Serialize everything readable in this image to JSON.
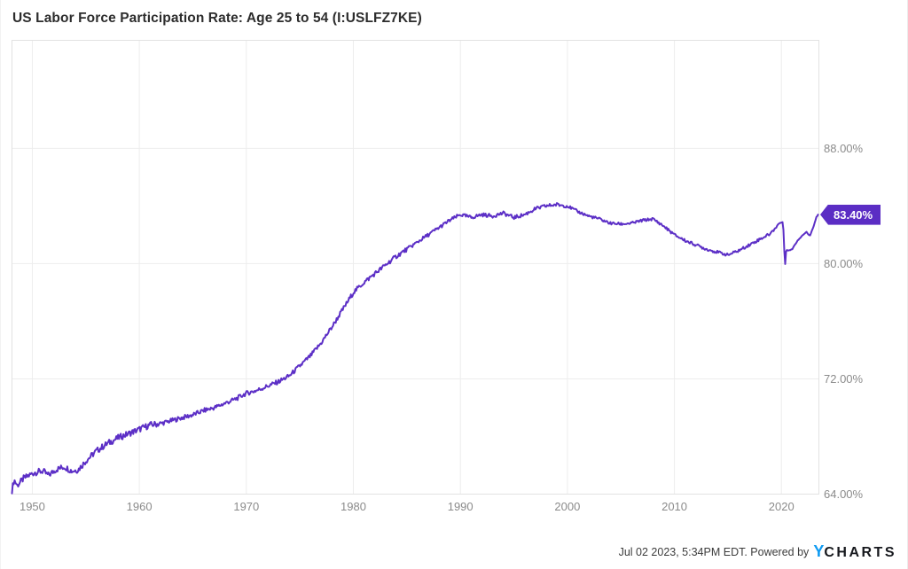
{
  "title": "US Labor Force Participation Rate: Age 25 to 54 (I:USLFZ7KE)",
  "footer": {
    "timestamp": "Jul 02 2023, 5:34PM EDT. Powered by",
    "logo_y": "Y",
    "logo_charts": "CHARTS"
  },
  "colors": {
    "line": "#5c2fc6",
    "badge_bg": "#5b2dc4",
    "grid": "#ededed",
    "plot_border": "#e2e2e2",
    "axis_text": "#8b8b8b",
    "title_text": "#2d2d2d",
    "footer_text": "#3c3c3c",
    "brand_blue": "#0f9bf2",
    "brand_dark": "#16181d"
  },
  "chart_data": {
    "type": "line",
    "title": "US Labor Force Participation Rate: Age 25 to 54 (I:USLFZ7KE)",
    "xlabel": "",
    "ylabel": "",
    "grid": true,
    "legend": "none",
    "xlim": [
      1948.1,
      2023.5
    ],
    "ylim": [
      64,
      95.5
    ],
    "x_ticks": [
      {
        "year": 1950,
        "label": "1950"
      },
      {
        "year": 1960,
        "label": "1960"
      },
      {
        "year": 1970,
        "label": "1970"
      },
      {
        "year": 1980,
        "label": "1980"
      },
      {
        "year": 1990,
        "label": "1990"
      },
      {
        "year": 2000,
        "label": "2000"
      },
      {
        "year": 2010,
        "label": "2010"
      },
      {
        "year": 2020,
        "label": "2020"
      }
    ],
    "y_ticks": [
      {
        "value": 88,
        "label": "88.00%"
      },
      {
        "value": 80,
        "label": "80.00%"
      },
      {
        "value": 72,
        "label": "72.00%"
      },
      {
        "value": 64,
        "label": "64.00%"
      }
    ],
    "last_value": 83.4,
    "last_value_label": "83.40%",
    "series": [
      {
        "name": "US Labor Force Participation Rate: Age 25 to 54",
        "points": [
          [
            1948.1,
            64.25
          ],
          [
            1948.3,
            65.0
          ],
          [
            1948.6,
            64.6
          ],
          [
            1949.2,
            65.1
          ],
          [
            1949.7,
            65.3
          ],
          [
            1950.2,
            65.5
          ],
          [
            1951.0,
            65.6
          ],
          [
            1951.5,
            65.3
          ],
          [
            1952.2,
            65.7
          ],
          [
            1953.0,
            65.9
          ],
          [
            1953.7,
            65.6
          ],
          [
            1954.3,
            65.7
          ],
          [
            1955.0,
            66.3
          ],
          [
            1956.0,
            67.0
          ],
          [
            1957.0,
            67.5
          ],
          [
            1958.0,
            67.9
          ],
          [
            1959.0,
            68.2
          ],
          [
            1960.0,
            68.5
          ],
          [
            1961.0,
            68.8
          ],
          [
            1962.0,
            68.9
          ],
          [
            1963.0,
            69.1
          ],
          [
            1964.0,
            69.3
          ],
          [
            1965.0,
            69.5
          ],
          [
            1966.0,
            69.8
          ],
          [
            1967.0,
            70.0
          ],
          [
            1968.0,
            70.3
          ],
          [
            1969.0,
            70.6
          ],
          [
            1970.0,
            71.0
          ],
          [
            1971.0,
            71.2
          ],
          [
            1972.0,
            71.5
          ],
          [
            1973.0,
            71.8
          ],
          [
            1974.0,
            72.2
          ],
          [
            1975.0,
            72.9
          ],
          [
            1976.0,
            73.6
          ],
          [
            1977.0,
            74.5
          ],
          [
            1978.0,
            75.6
          ],
          [
            1979.0,
            76.8
          ],
          [
            1980.0,
            78.0
          ],
          [
            1981.0,
            78.7
          ],
          [
            1982.0,
            79.3
          ],
          [
            1983.0,
            79.9
          ],
          [
            1984.0,
            80.5
          ],
          [
            1985.0,
            81.0
          ],
          [
            1986.0,
            81.5
          ],
          [
            1987.0,
            82.0
          ],
          [
            1988.0,
            82.5
          ],
          [
            1989.0,
            83.0
          ],
          [
            1990.0,
            83.4
          ],
          [
            1991.0,
            83.2
          ],
          [
            1992.0,
            83.4
          ],
          [
            1993.0,
            83.3
          ],
          [
            1994.0,
            83.5
          ],
          [
            1995.0,
            83.2
          ],
          [
            1996.0,
            83.4
          ],
          [
            1997.0,
            83.8
          ],
          [
            1998.0,
            84.0
          ],
          [
            1999.0,
            84.1
          ],
          [
            2000.0,
            84.0
          ],
          [
            2001.0,
            83.6
          ],
          [
            2002.0,
            83.3
          ],
          [
            2003.0,
            83.1
          ],
          [
            2004.0,
            82.8
          ],
          [
            2005.0,
            82.75
          ],
          [
            2006.0,
            82.8
          ],
          [
            2007.0,
            83.0
          ],
          [
            2008.0,
            83.1
          ],
          [
            2009.0,
            82.6
          ],
          [
            2010.0,
            82.0
          ],
          [
            2011.0,
            81.6
          ],
          [
            2012.0,
            81.3
          ],
          [
            2013.0,
            81.0
          ],
          [
            2014.0,
            80.8
          ],
          [
            2015.0,
            80.6
          ],
          [
            2016.0,
            80.9
          ],
          [
            2017.0,
            81.3
          ],
          [
            2018.0,
            81.7
          ],
          [
            2019.0,
            82.1
          ],
          [
            2019.8,
            82.8
          ],
          [
            2020.15,
            82.9
          ],
          [
            2020.33,
            79.8
          ],
          [
            2020.45,
            81.0
          ],
          [
            2020.7,
            80.9
          ],
          [
            2021.0,
            81.0
          ],
          [
            2021.5,
            81.6
          ],
          [
            2022.0,
            82.0
          ],
          [
            2022.35,
            82.2
          ],
          [
            2022.65,
            81.9
          ],
          [
            2023.0,
            82.6
          ],
          [
            2023.25,
            83.2
          ],
          [
            2023.42,
            83.4
          ]
        ]
      }
    ]
  }
}
